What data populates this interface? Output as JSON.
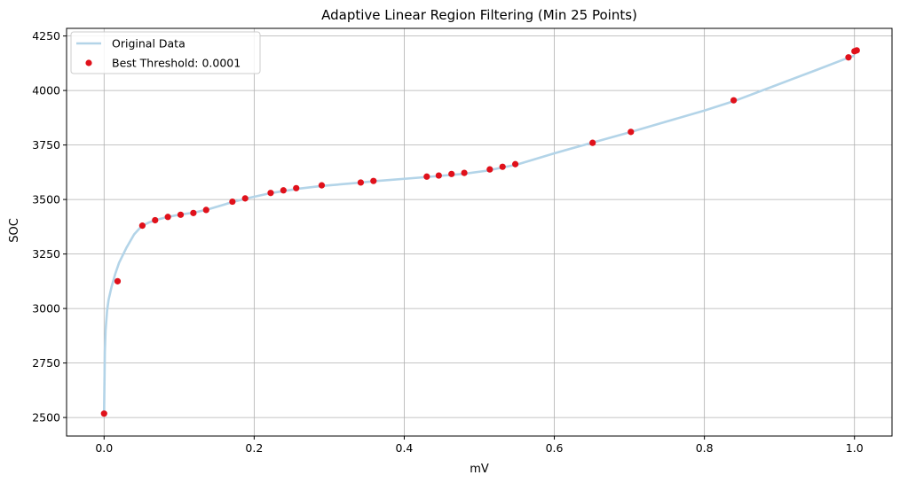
{
  "chart_data": {
    "type": "scatter",
    "title": "Adaptive Linear Region Filtering (Min 25 Points)",
    "xlabel": "mV",
    "ylabel": "SOC",
    "xlim": [
      -0.05,
      1.05
    ],
    "ylim": [
      2415,
      4285
    ],
    "xticks": [
      0.0,
      0.2,
      0.4,
      0.6,
      0.8,
      1.0
    ],
    "xtick_labels": [
      "0.0",
      "0.2",
      "0.4",
      "0.6",
      "0.8",
      "1.0"
    ],
    "yticks": [
      2500,
      2750,
      3000,
      3250,
      3500,
      3750,
      4000,
      4250
    ],
    "ytick_labels": [
      "2500",
      "2750",
      "3000",
      "3250",
      "3500",
      "3750",
      "4000",
      "4250"
    ],
    "grid": true,
    "legend_position": "top-left",
    "series": [
      {
        "name": "Original Data",
        "kind": "line",
        "color": "#b3d4e8",
        "x": [
          0.0,
          0.001,
          0.002,
          0.004,
          0.006,
          0.01,
          0.015,
          0.02,
          0.03,
          0.04,
          0.05,
          0.06,
          0.07,
          0.085,
          0.1,
          0.12,
          0.14,
          0.17,
          0.19,
          0.22,
          0.26,
          0.29,
          0.34,
          0.36,
          0.43,
          0.48,
          0.51,
          0.55,
          0.6,
          0.65,
          0.7,
          0.8,
          0.84,
          0.9,
          0.95,
          0.99,
          1.0
        ],
        "y": [
          2520,
          2800,
          2900,
          2990,
          3040,
          3100,
          3160,
          3210,
          3280,
          3340,
          3378,
          3395,
          3407,
          3420,
          3430,
          3440,
          3456,
          3487,
          3505,
          3528,
          3550,
          3562,
          3577,
          3584,
          3603,
          3618,
          3632,
          3660,
          3712,
          3760,
          3808,
          3908,
          3952,
          4030,
          4095,
          4148,
          4160
        ]
      },
      {
        "name": "Best Threshold: 0.0001",
        "kind": "scatter",
        "color": "#e0111b",
        "x": [
          0.0,
          0.018,
          0.051,
          0.068,
          0.085,
          0.102,
          0.119,
          0.136,
          0.171,
          0.188,
          0.222,
          0.239,
          0.256,
          0.29,
          0.342,
          0.359,
          0.43,
          0.446,
          0.463,
          0.48,
          0.514,
          0.531,
          0.548,
          0.651,
          0.702,
          0.839,
          0.992,
          1.0,
          1.003
        ],
        "y": [
          2518,
          3125,
          3380,
          3405,
          3420,
          3430,
          3438,
          3452,
          3490,
          3505,
          3530,
          3542,
          3552,
          3565,
          3578,
          3585,
          3605,
          3610,
          3617,
          3622,
          3638,
          3650,
          3662,
          3760,
          3810,
          3955,
          4152,
          4180,
          4184
        ]
      }
    ]
  }
}
